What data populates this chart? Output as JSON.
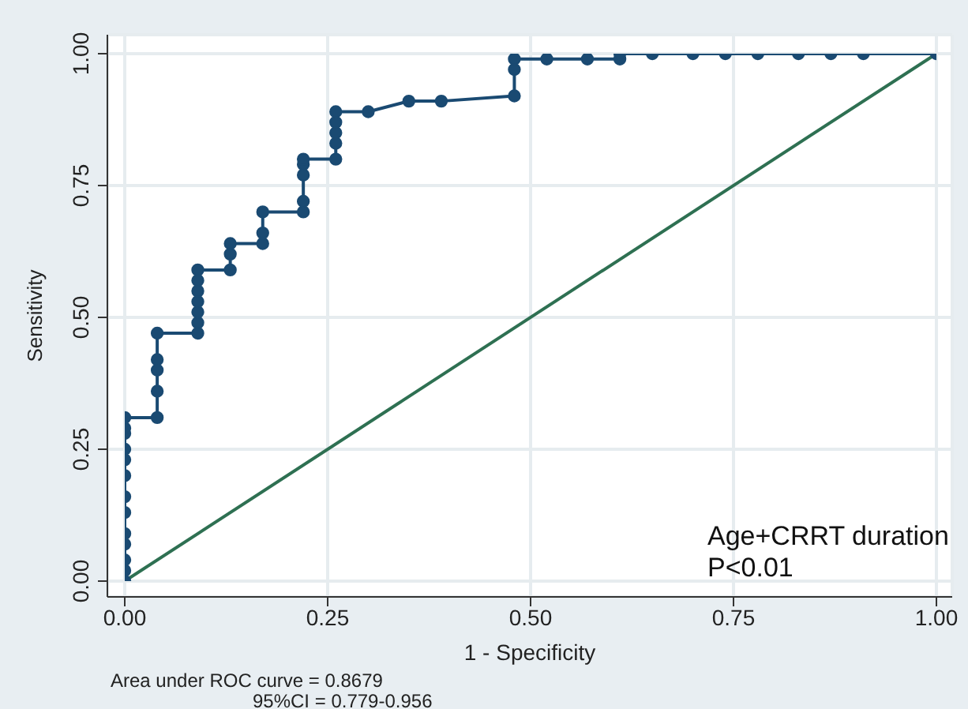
{
  "chart_data": {
    "type": "line",
    "xlabel": "1 - Specificity",
    "ylabel": "Sensitivity",
    "xlim": [
      0,
      1
    ],
    "ylim": [
      0,
      1
    ],
    "xticks": [
      {
        "value": 0,
        "label": "0.00"
      },
      {
        "value": 0.25,
        "label": "0.25"
      },
      {
        "value": 0.5,
        "label": "0.50"
      },
      {
        "value": 0.75,
        "label": "0.75"
      },
      {
        "value": 1,
        "label": "1.00"
      }
    ],
    "yticks": [
      {
        "value": 0,
        "label": "0.00"
      },
      {
        "value": 0.25,
        "label": "0.25"
      },
      {
        "value": 0.5,
        "label": "0.50"
      },
      {
        "value": 0.75,
        "label": "0.75"
      },
      {
        "value": 1,
        "label": "1.00"
      }
    ],
    "grid": true,
    "series": [
      {
        "color": "#1a4a72",
        "marker": "circle",
        "x": [
          0,
          0,
          0,
          0,
          0,
          0,
          0,
          0,
          0,
          0,
          0,
          0,
          0,
          0.04,
          0.04,
          0.04,
          0.04,
          0.04,
          0.09,
          0.09,
          0.09,
          0.09,
          0.09,
          0.09,
          0.09,
          0.13,
          0.13,
          0.13,
          0.17,
          0.17,
          0.17,
          0.22,
          0.22,
          0.22,
          0.22,
          0.22,
          0.26,
          0.26,
          0.26,
          0.26,
          0.26,
          0.3,
          0.35,
          0.39,
          0.48,
          0.48,
          0.48,
          0.52,
          0.57,
          0.61,
          0.61,
          0.65,
          0.7,
          0.74,
          0.78,
          0.83,
          0.87,
          0.91,
          1
        ],
        "values": [
          0,
          0.02,
          0.04,
          0.07,
          0.09,
          0.13,
          0.16,
          0.2,
          0.23,
          0.25,
          0.28,
          0.29,
          0.31,
          0.31,
          0.36,
          0.4,
          0.42,
          0.47,
          0.47,
          0.49,
          0.51,
          0.53,
          0.55,
          0.57,
          0.59,
          0.59,
          0.62,
          0.64,
          0.64,
          0.66,
          0.7,
          0.7,
          0.72,
          0.77,
          0.79,
          0.8,
          0.8,
          0.83,
          0.85,
          0.87,
          0.89,
          0.89,
          0.91,
          0.91,
          0.92,
          0.97,
          0.99,
          0.99,
          0.99,
          0.99,
          1,
          1,
          1,
          1,
          1,
          1,
          1,
          1,
          1
        ]
      },
      {
        "color": "#2e7052",
        "marker": "none",
        "x": [
          0,
          1
        ],
        "values": [
          0,
          1
        ]
      }
    ],
    "annotations": [
      "Age+CRRT duration",
      "P<0.01",
      "Area under ROC curve = 0.8679",
      "95%CI = 0.779-0.956"
    ]
  }
}
